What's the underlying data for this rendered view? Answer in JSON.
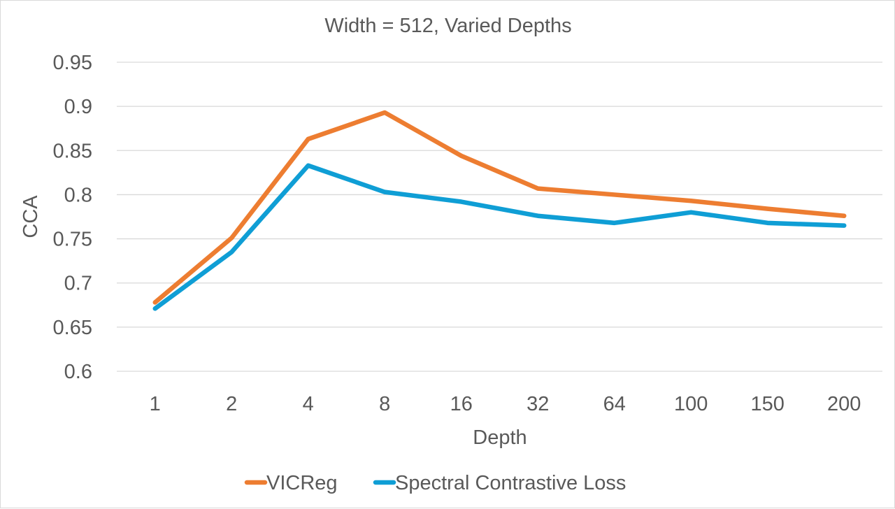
{
  "chart_data": {
    "type": "line",
    "title": "Width = 512, Varied Depths",
    "xlabel": "Depth",
    "ylabel": "CCA",
    "categories": [
      "1",
      "2",
      "4",
      "8",
      "16",
      "32",
      "64",
      "100",
      "150",
      "200"
    ],
    "ylim": [
      0.6,
      0.95
    ],
    "yticks": [
      0.6,
      0.65,
      0.7,
      0.75,
      0.8,
      0.85,
      0.9,
      0.95
    ],
    "ytick_labels": [
      "0.6",
      "0.65",
      "0.7",
      "0.75",
      "0.8",
      "0.85",
      "0.9",
      "0.95"
    ],
    "grid": true,
    "legend_position": "bottom",
    "series": [
      {
        "name": "VICReg",
        "color": "#ED7D31",
        "values": [
          0.678,
          0.751,
          0.863,
          0.893,
          0.844,
          0.807,
          0.8,
          0.793,
          0.784,
          0.776
        ]
      },
      {
        "name": "Spectral Contrastive Loss",
        "color": "#0F9ED5",
        "values": [
          0.671,
          0.735,
          0.833,
          0.803,
          0.792,
          0.776,
          0.768,
          0.78,
          0.768,
          0.765
        ]
      }
    ]
  }
}
